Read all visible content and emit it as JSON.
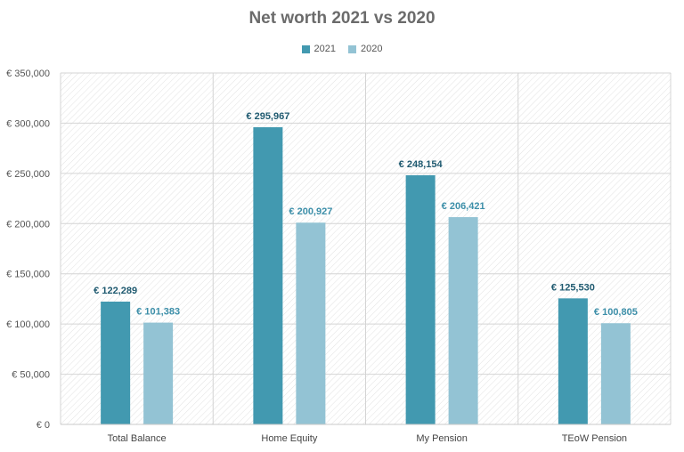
{
  "chart_data": {
    "type": "bar",
    "title": "Net worth 2021 vs 2020",
    "categories": [
      "Total Balance",
      "Home Equity",
      "My Pension",
      "TEoW Pension"
    ],
    "series": [
      {
        "name": "2021",
        "color": "#4299B0",
        "values": [
          122289,
          295967,
          248154,
          125530
        ],
        "labels": [
          "€ 122,289",
          "€ 295,967",
          "€ 248,154",
          "€ 125,530"
        ],
        "label_color": "#1F5A70"
      },
      {
        "name": "2020",
        "color": "#93C3D4",
        "values": [
          101383,
          200927,
          206421,
          100805
        ],
        "labels": [
          "€ 101,383",
          "€ 200,927",
          "€ 206,421",
          "€ 100,805"
        ],
        "label_color": "#3D8FA9"
      }
    ],
    "ylim": [
      0,
      350000
    ],
    "yticks": [
      0,
      50000,
      100000,
      150000,
      200000,
      250000,
      300000,
      350000
    ],
    "ytick_labels": [
      "€ 0",
      "€ 50,000",
      "€ 100,000",
      "€ 150,000",
      "€ 200,000",
      "€ 250,000",
      "€ 300,000",
      "€ 350,000"
    ],
    "xlabel": "",
    "ylabel": "",
    "legend_position": "top",
    "grid": true,
    "background": "hatched"
  }
}
